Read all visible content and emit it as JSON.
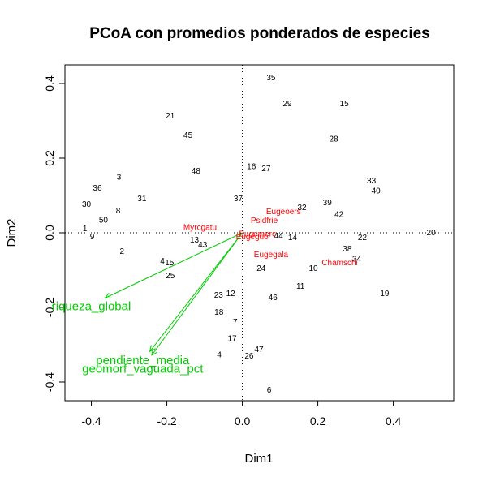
{
  "chart_data": {
    "type": "scatter",
    "title": "PCoA con promedios ponderados de especies",
    "xlabel": "Dim1",
    "ylabel": "Dim2",
    "xlim": [
      -0.47,
      0.56
    ],
    "ylim": [
      -0.45,
      0.45
    ],
    "xticks": [
      "-0.4",
      "-0.2",
      "0.0",
      "0.2",
      "0.4"
    ],
    "yticks": [
      "-0.4",
      "-0.2",
      "0.0",
      "0.2",
      "0.4"
    ],
    "xtick_values": [
      -0.4,
      -0.2,
      0.0,
      0.2,
      0.4
    ],
    "ytick_values": [
      -0.4,
      -0.2,
      0.0,
      0.2,
      0.4
    ],
    "reference_lines": {
      "x": 0,
      "y": 0,
      "style": "dotted"
    },
    "grid": false,
    "colors": {
      "sites": "#000000",
      "species": "#ff0000",
      "vectors": "#00cc00"
    },
    "sites": [
      {
        "label": "35",
        "x": 0.076,
        "y": 0.417
      },
      {
        "label": "29",
        "x": 0.119,
        "y": 0.348
      },
      {
        "label": "15",
        "x": 0.27,
        "y": 0.348
      },
      {
        "label": "21",
        "x": -0.191,
        "y": 0.315
      },
      {
        "label": "45",
        "x": -0.144,
        "y": 0.263
      },
      {
        "label": "28",
        "x": 0.242,
        "y": 0.253
      },
      {
        "label": "16",
        "x": 0.024,
        "y": 0.179
      },
      {
        "label": "27",
        "x": 0.063,
        "y": 0.174
      },
      {
        "label": "48",
        "x": -0.123,
        "y": 0.167
      },
      {
        "label": "3",
        "x": -0.327,
        "y": 0.151
      },
      {
        "label": "33",
        "x": 0.342,
        "y": 0.141
      },
      {
        "label": "36",
        "x": -0.384,
        "y": 0.122
      },
      {
        "label": "40",
        "x": 0.354,
        "y": 0.114
      },
      {
        "label": "37",
        "x": -0.011,
        "y": 0.094
      },
      {
        "label": "31",
        "x": -0.266,
        "y": 0.094
      },
      {
        "label": "30",
        "x": -0.413,
        "y": 0.078
      },
      {
        "label": "39",
        "x": 0.225,
        "y": 0.083
      },
      {
        "label": "32",
        "x": 0.158,
        "y": 0.07
      },
      {
        "label": "8",
        "x": -0.329,
        "y": 0.061
      },
      {
        "label": "42",
        "x": 0.256,
        "y": 0.051
      },
      {
        "label": "50",
        "x": -0.368,
        "y": 0.036
      },
      {
        "label": "1",
        "x": -0.417,
        "y": 0.013
      },
      {
        "label": "20",
        "x": 0.5,
        "y": 0.002
      },
      {
        "label": "9",
        "x": -0.398,
        "y": -0.009
      },
      {
        "label": "22",
        "x": 0.318,
        "y": -0.011
      },
      {
        "label": "44",
        "x": 0.096,
        "y": -0.007
      },
      {
        "label": "14",
        "x": 0.133,
        "y": -0.011
      },
      {
        "label": "13",
        "x": -0.127,
        "y": -0.017
      },
      {
        "label": "43",
        "x": -0.105,
        "y": -0.03
      },
      {
        "label": "38",
        "x": 0.278,
        "y": -0.041
      },
      {
        "label": "2",
        "x": -0.319,
        "y": -0.048
      },
      {
        "label": "34",
        "x": 0.303,
        "y": -0.068
      },
      {
        "label": "4",
        "x": -0.212,
        "y": -0.074
      },
      {
        "label": "15",
        "x": -0.193,
        "y": -0.078
      },
      {
        "label": "24",
        "x": 0.05,
        "y": -0.094
      },
      {
        "label": "10",
        "x": 0.188,
        "y": -0.094
      },
      {
        "label": "25",
        "x": -0.191,
        "y": -0.113
      },
      {
        "label": "11",
        "x": 0.154,
        "y": -0.141
      },
      {
        "label": "12",
        "x": -0.031,
        "y": -0.161
      },
      {
        "label": "23",
        "x": -0.063,
        "y": -0.165
      },
      {
        "label": "19",
        "x": 0.377,
        "y": -0.161
      },
      {
        "label": "46",
        "x": 0.081,
        "y": -0.172
      },
      {
        "label": "18",
        "x": -0.062,
        "y": -0.211
      },
      {
        "label": "7",
        "x": -0.019,
        "y": -0.237
      },
      {
        "label": "17",
        "x": -0.027,
        "y": -0.281
      },
      {
        "label": "47",
        "x": 0.044,
        "y": -0.311
      },
      {
        "label": "4",
        "x": -0.061,
        "y": -0.325
      },
      {
        "label": "26",
        "x": 0.018,
        "y": -0.328
      },
      {
        "label": "6",
        "x": 0.071,
        "y": -0.42
      }
    ],
    "species": [
      {
        "label": "Eugeoers",
        "x": 0.109,
        "y": 0.059
      },
      {
        "label": "Psidfrie",
        "x": 0.058,
        "y": 0.035
      },
      {
        "label": "Myrcgatu",
        "x": -0.112,
        "y": 0.016
      },
      {
        "label": "Eugemerc",
        "x": 0.04,
        "y": -0.001
      },
      {
        "label": "Eugeguo",
        "x": 0.026,
        "y": -0.009
      },
      {
        "label": "Eugegala",
        "x": 0.076,
        "y": -0.056
      },
      {
        "label": "Chamschi",
        "x": 0.258,
        "y": -0.078
      }
    ],
    "vectors": [
      {
        "label": "riqueza_global",
        "x": -0.364,
        "y": -0.175,
        "label_x": -0.4,
        "label_y": -0.197
      },
      {
        "label": "pendiente_media",
        "x": -0.245,
        "y": -0.318,
        "label_x": -0.264,
        "label_y": -0.341
      },
      {
        "label": "geomorf_vaguada_pct",
        "x": -0.24,
        "y": -0.328,
        "label_x": -0.264,
        "label_y": -0.364
      }
    ]
  }
}
